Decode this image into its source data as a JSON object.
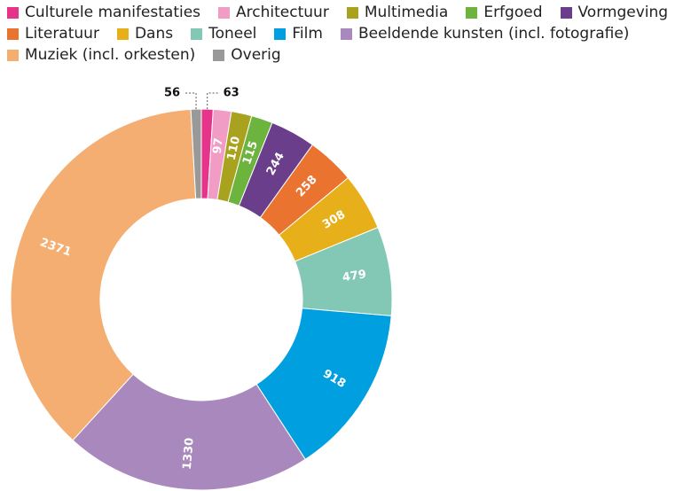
{
  "chart_data": {
    "type": "donut",
    "categories": [
      "Culturele manifestaties",
      "Architectuur",
      "Multimedia",
      "Erfgoed",
      "Vormgeving",
      "Literatuur",
      "Dans",
      "Toneel",
      "Film",
      "Beeldende kunsten (incl. fotografie)",
      "Muziek (incl. orkesten)",
      "Overig"
    ],
    "values": [
      63,
      97,
      110,
      115,
      244,
      258,
      308,
      479,
      918,
      1330,
      2371,
      56
    ],
    "colors": [
      "#e5348a",
      "#f09cc4",
      "#a8a21e",
      "#6db43e",
      "#6a3e8b",
      "#ea7330",
      "#e7b01a",
      "#82c8b5",
      "#009fe0",
      "#a888bd",
      "#f5ae72",
      "#999999"
    ]
  }
}
